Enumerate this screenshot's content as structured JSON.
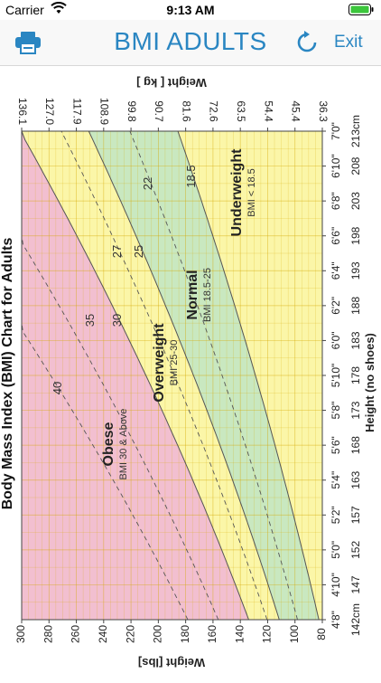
{
  "status": {
    "carrier": "Carrier",
    "time": "9:13 AM"
  },
  "nav": {
    "title": "BMI ADULTS",
    "exit_label": "Exit",
    "print_icon": "printer-icon",
    "refresh_icon": "refresh-icon",
    "accent_color": "#2a86c2"
  },
  "chart_data": {
    "type": "area",
    "title": "Body Mass Index (BMI) Chart for Adults",
    "xlabel": "Height (no shoes)",
    "ylabel": "Weight [lbs]",
    "ylabel_right": "Weight [ kg ]",
    "height_inches": [
      "4'8\"",
      "4'10\"",
      "5'0\"",
      "5'2\"",
      "5'4\"",
      "5'6\"",
      "5'8\"",
      "5'10\"",
      "6'0\"",
      "6'2\"",
      "6'4\"",
      "6'6\"",
      "6'8\"",
      "6'10\"",
      "7'0\""
    ],
    "height_cm": [
      "142cm",
      "147",
      "152",
      "157",
      "163",
      "168",
      "173",
      "178",
      "183",
      "188",
      "193",
      "198",
      "203",
      "208",
      "213cm"
    ],
    "weight_lbs": [
      "300",
      "280",
      "260",
      "240",
      "220",
      "200",
      "180",
      "160",
      "140",
      "120",
      "100",
      "80"
    ],
    "weight_kg": [
      "136.1",
      "127.0",
      "117.9",
      "108.9",
      "99.8",
      "90.7",
      "81.6",
      "72.6",
      "63.5",
      "54.4",
      "45.4",
      "36.3"
    ],
    "ylim": [
      80,
      300
    ],
    "x_inches": [
      56,
      84
    ],
    "categories": [
      {
        "name": "Underweight",
        "range": "BMI < 18.5",
        "color": "#fbf6a8"
      },
      {
        "name": "Normal",
        "range": "BMI 18.5-25",
        "color": "#c9e8c0"
      },
      {
        "name": "Overweight",
        "range": "BMI 25-30",
        "color": "#fbf6a8"
      },
      {
        "name": "Obese",
        "range": "BMI 30 & Above",
        "color": "#f2bfd0"
      }
    ],
    "boundary_bmi": [
      18.5,
      25,
      30
    ],
    "dashed_bmi": [
      22,
      27,
      35,
      40
    ],
    "line_labels": [
      "18.5",
      "22",
      "25",
      "27",
      "30",
      "35",
      "40"
    ]
  }
}
